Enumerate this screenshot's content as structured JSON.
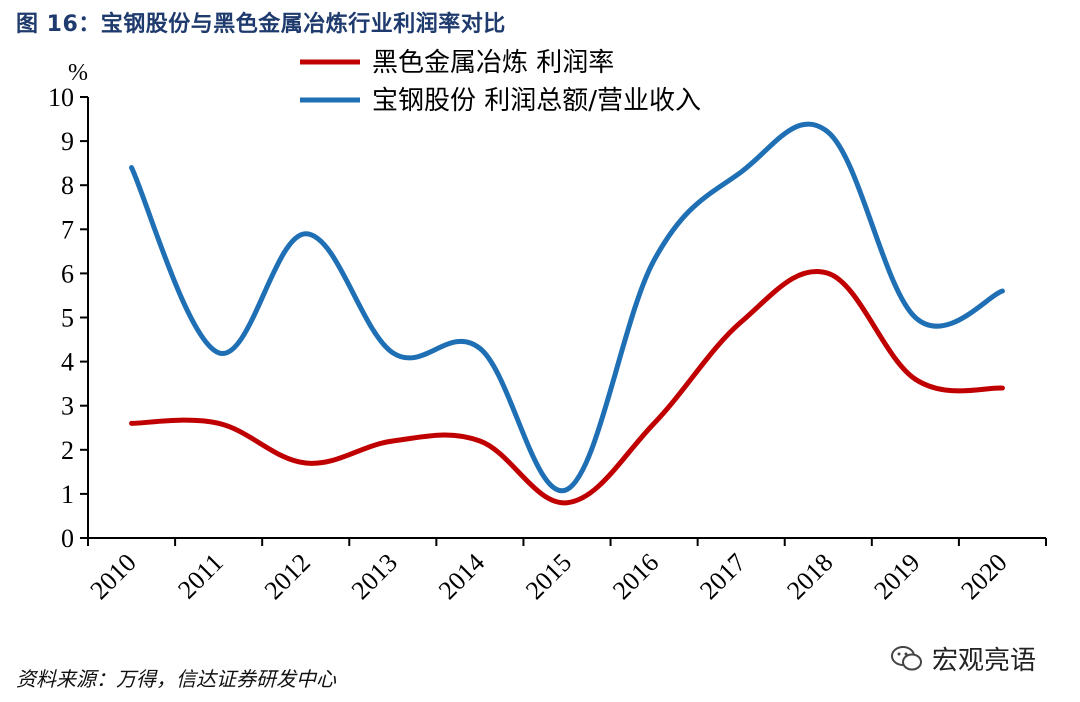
{
  "figure": {
    "title": "图 16：宝钢股份与黑色金属冶炼行业利润率对比",
    "source": "资料来源：万得，信达证券研发中心",
    "watermark": "宏观亮语"
  },
  "chart_data": {
    "type": "line",
    "title": "图 16：宝钢股份与黑色金属冶炼行业利润率对比",
    "ylabel": "%",
    "xlabel": "",
    "ylim": [
      0,
      10
    ],
    "yticks": [
      0,
      1,
      2,
      3,
      4,
      5,
      6,
      7,
      8,
      9,
      10
    ],
    "categories": [
      "2010",
      "2011",
      "2012",
      "2013",
      "2014",
      "2015",
      "2016",
      "2017",
      "2018",
      "2019",
      "2020"
    ],
    "legend_position": "top-center",
    "grid": false,
    "series": [
      {
        "name": "黑色金属冶炼 利润率",
        "color": "#c00000",
        "values": [
          2.6,
          2.6,
          1.7,
          2.2,
          2.2,
          0.8,
          2.6,
          4.9,
          6.0,
          3.6,
          3.4
        ]
      },
      {
        "name": "宝钢股份 利润总额/营业收入",
        "color": "#1f6fb5",
        "values": [
          8.4,
          4.2,
          6.9,
          4.2,
          4.3,
          1.1,
          6.3,
          8.3,
          9.2,
          5.0,
          5.6
        ]
      }
    ]
  }
}
